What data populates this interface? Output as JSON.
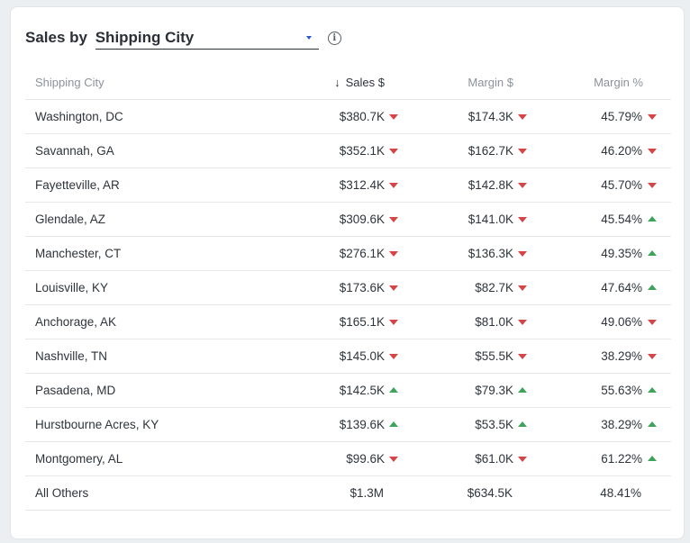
{
  "widget": {
    "title_prefix": "Sales by ",
    "dimension_selected": "Shipping City",
    "info_icon": "info-icon",
    "sort_icon": "arrow-down-icon"
  },
  "colors": {
    "down": "#d64545",
    "up": "#3fa35c",
    "dropdown_caret": "#2d55c8"
  },
  "table": {
    "headers": {
      "city": "Shipping City",
      "sales": "Sales $",
      "margin": "Margin $",
      "margin_pct": "Margin %"
    },
    "rows": [
      {
        "city": "Washington, DC",
        "sales": "$380.7K",
        "sales_trend": "down",
        "margin": "$174.3K",
        "margin_trend": "down",
        "margin_pct": "45.79%",
        "pct_trend": "down"
      },
      {
        "city": "Savannah, GA",
        "sales": "$352.1K",
        "sales_trend": "down",
        "margin": "$162.7K",
        "margin_trend": "down",
        "margin_pct": "46.20%",
        "pct_trend": "down"
      },
      {
        "city": "Fayetteville, AR",
        "sales": "$312.4K",
        "sales_trend": "down",
        "margin": "$142.8K",
        "margin_trend": "down",
        "margin_pct": "45.70%",
        "pct_trend": "down"
      },
      {
        "city": "Glendale, AZ",
        "sales": "$309.6K",
        "sales_trend": "down",
        "margin": "$141.0K",
        "margin_trend": "down",
        "margin_pct": "45.54%",
        "pct_trend": "up"
      },
      {
        "city": "Manchester, CT",
        "sales": "$276.1K",
        "sales_trend": "down",
        "margin": "$136.3K",
        "margin_trend": "down",
        "margin_pct": "49.35%",
        "pct_trend": "up"
      },
      {
        "city": "Louisville, KY",
        "sales": "$173.6K",
        "sales_trend": "down",
        "margin": "$82.7K",
        "margin_trend": "down",
        "margin_pct": "47.64%",
        "pct_trend": "up"
      },
      {
        "city": "Anchorage, AK",
        "sales": "$165.1K",
        "sales_trend": "down",
        "margin": "$81.0K",
        "margin_trend": "down",
        "margin_pct": "49.06%",
        "pct_trend": "down"
      },
      {
        "city": "Nashville, TN",
        "sales": "$145.0K",
        "sales_trend": "down",
        "margin": "$55.5K",
        "margin_trend": "down",
        "margin_pct": "38.29%",
        "pct_trend": "down"
      },
      {
        "city": "Pasadena, MD",
        "sales": "$142.5K",
        "sales_trend": "up",
        "margin": "$79.3K",
        "margin_trend": "up",
        "margin_pct": "55.63%",
        "pct_trend": "up"
      },
      {
        "city": "Hurstbourne Acres, KY",
        "sales": "$139.6K",
        "sales_trend": "up",
        "margin": "$53.5K",
        "margin_trend": "up",
        "margin_pct": "38.29%",
        "pct_trend": "up"
      },
      {
        "city": "Montgomery, AL",
        "sales": "$99.6K",
        "sales_trend": "down",
        "margin": "$61.0K",
        "margin_trend": "down",
        "margin_pct": "61.22%",
        "pct_trend": "up"
      }
    ],
    "others": {
      "city": "All Others",
      "sales": "$1.3M",
      "margin": "$634.5K",
      "margin_pct": "48.41%"
    }
  }
}
